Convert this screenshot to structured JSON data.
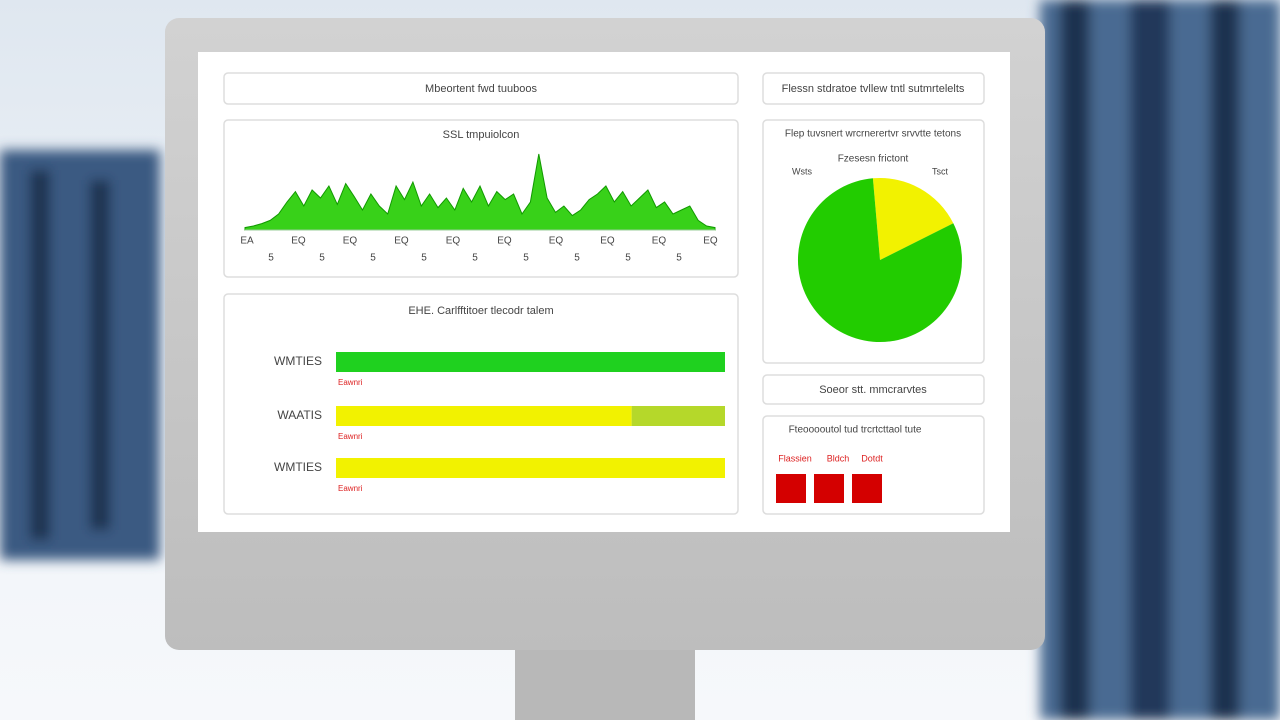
{
  "header": {
    "left": "Mbeortent fwd tuuboos",
    "right": "Flessn stdratoe tvllew tntl sutmrtelelts"
  },
  "chart_data": [
    {
      "type": "area",
      "title": "SSL tmpuiolcon",
      "color": "#22cc00",
      "values": [
        3,
        5,
        8,
        12,
        20,
        35,
        48,
        30,
        50,
        40,
        55,
        32,
        58,
        42,
        25,
        45,
        30,
        20,
        55,
        38,
        60,
        30,
        45,
        28,
        40,
        25,
        52,
        35,
        55,
        30,
        48,
        38,
        45,
        20,
        35,
        95,
        40,
        22,
        30,
        18,
        25,
        38,
        45,
        55,
        35,
        48,
        30,
        40,
        50,
        28,
        35,
        20,
        25,
        30,
        12,
        5,
        3
      ],
      "ylim": [
        0,
        100
      ],
      "xtick_labels": [
        "EA",
        "EQ",
        "EQ",
        "EQ",
        "EQ",
        "EQ",
        "EQ",
        "EQ",
        "EQ",
        "EQ"
      ],
      "xtick_sublabels": [
        "5",
        "5",
        "5",
        "5",
        "5",
        "5",
        "5",
        "5",
        "5"
      ]
    },
    {
      "type": "hbar",
      "title": "EHE. Carlfftitoer tlecodr talem",
      "xlim": [
        0,
        100
      ],
      "bars": [
        {
          "label": "WMTIES",
          "note": "Eawnri",
          "segments": [
            {
              "color": "#1fd11f",
              "value": 100
            }
          ]
        },
        {
          "label": "WAATIS",
          "note": "Eawnri",
          "segments": [
            {
              "color": "#f2f200",
              "value": 76
            },
            {
              "color": "#b5d82a",
              "value": 24
            }
          ]
        },
        {
          "label": "WMTIES",
          "note": "Eawnri",
          "segments": [
            {
              "color": "#f2f200",
              "value": 100
            }
          ]
        }
      ]
    },
    {
      "type": "pie",
      "title": "Flep tuvsnert wrcrnerertvr srvvtte tetons",
      "subtitle": "Fzesesn frictont",
      "slices": [
        {
          "name": "Tsct",
          "color": "#f2f200",
          "value": 19
        },
        {
          "name": "Wsts",
          "color": "#22cc00",
          "value": 81
        }
      ]
    }
  ],
  "info_panel": {
    "title": "Soeor stt. mmcrarvtes"
  },
  "status_panel": {
    "title": "Fteooooutol tud trcrtcttaol tute",
    "labels": [
      "Flassien",
      "Bldch",
      "Dotdt"
    ]
  }
}
